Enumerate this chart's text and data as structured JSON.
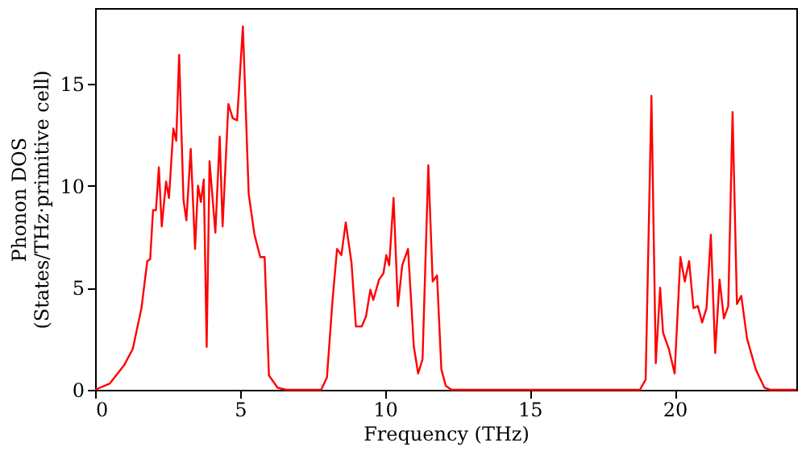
{
  "chart_data": {
    "type": "line",
    "xlabel": "Frequency (THz)",
    "ylabel": "Phonon DOS\n(States/THz·primitive cell)",
    "xlim": [
      0,
      24.2
    ],
    "ylim": [
      0,
      18.7
    ],
    "xticks": [
      0,
      5,
      10,
      15,
      20
    ],
    "yticks": [
      0,
      5,
      10,
      15
    ],
    "grid": false,
    "marker": "none",
    "line_style": "solid",
    "x": [
      0,
      0.5,
      1,
      1.3,
      1.6,
      1.8,
      1.9,
      2.0,
      2.1,
      2.2,
      2.3,
      2.45,
      2.55,
      2.7,
      2.8,
      2.9,
      3.05,
      3.15,
      3.3,
      3.45,
      3.55,
      3.65,
      3.75,
      3.85,
      3.95,
      4.15,
      4.3,
      4.4,
      4.6,
      4.75,
      4.9,
      5.1,
      5.3,
      5.5,
      5.7,
      5.85,
      6.0,
      6.3,
      6.6,
      7.8,
      8.0,
      8.2,
      8.35,
      8.5,
      8.65,
      8.85,
      9.0,
      9.2,
      9.35,
      9.5,
      9.6,
      9.8,
      9.95,
      10.05,
      10.15,
      10.3,
      10.45,
      10.6,
      10.8,
      11.0,
      11.15,
      11.3,
      11.5,
      11.65,
      11.8,
      11.95,
      12.1,
      12.3,
      18.8,
      19.0,
      19.2,
      19.35,
      19.5,
      19.6,
      19.8,
      20.0,
      20.2,
      20.35,
      20.5,
      20.65,
      20.8,
      20.95,
      21.1,
      21.25,
      21.4,
      21.55,
      21.7,
      21.85,
      22.0,
      22.15,
      22.3,
      22.5,
      22.8,
      23.1,
      23.3,
      24.2
    ],
    "series": [
      {
        "color": "#ff0000",
        "values": [
          0,
          0.3,
          1.2,
          2,
          4,
          6.3,
          6.4,
          8.8,
          8.8,
          10.9,
          8,
          10.2,
          9.4,
          12.8,
          12.2,
          16.4,
          9.3,
          8.3,
          11.8,
          6.9,
          10,
          9.2,
          10.3,
          2.1,
          11.2,
          7.7,
          12.4,
          8.0,
          14.0,
          13.3,
          13.2,
          17.8,
          9.6,
          7.6,
          6.5,
          6.5,
          0.7,
          0.1,
          0,
          0,
          0.6,
          4.5,
          6.9,
          6.6,
          8.2,
          6.2,
          3.1,
          3.1,
          3.6,
          4.9,
          4.4,
          5.4,
          5.7,
          6.6,
          6.1,
          9.4,
          4.1,
          6.1,
          6.9,
          2.1,
          0.8,
          1.5,
          11,
          5.3,
          5.6,
          1,
          0.2,
          0,
          0,
          0.5,
          14.4,
          1.3,
          5,
          2.8,
          2.0,
          0.8,
          6.5,
          5.3,
          6.3,
          4.0,
          4.1,
          3.3,
          4.0,
          7.6,
          1.8,
          5.4,
          3.5,
          4.1,
          13.6,
          4.2,
          4.6,
          2.5,
          1,
          0.1,
          0,
          0
        ]
      }
    ]
  }
}
